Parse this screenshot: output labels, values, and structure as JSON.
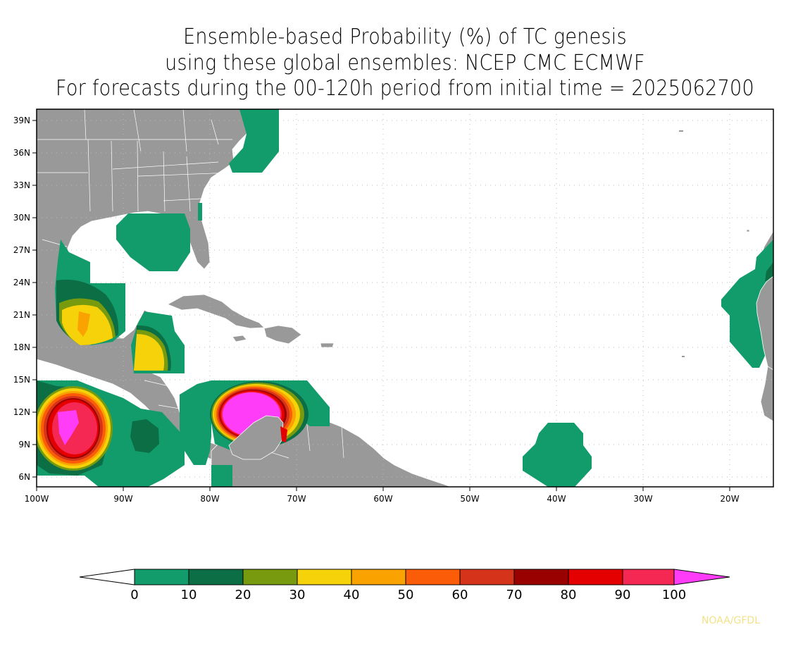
{
  "title": {
    "line1": "Ensemble-based Probability (%) of TC genesis",
    "line2": "using these global ensembles:   NCEP CMC ECMWF",
    "line3": "For forecasts during the 00-120h period from initial time = 2025062700"
  },
  "axes": {
    "lat_labels": [
      "39N",
      "36N",
      "33N",
      "30N",
      "27N",
      "24N",
      "21N",
      "18N",
      "15N",
      "12N",
      "9N",
      "6N"
    ],
    "lon_labels": [
      "100W",
      "90W",
      "80W",
      "70W",
      "60W",
      "50W",
      "40W",
      "30W",
      "20W"
    ]
  },
  "colorbar": {
    "ticks": [
      "0",
      "10",
      "20",
      "30",
      "40",
      "50",
      "60",
      "70",
      "80",
      "90",
      "100"
    ],
    "colors": [
      "#129c6c",
      "#0b6e45",
      "#779a0e",
      "#f5d20a",
      "#f9a200",
      "#fb5c07",
      "#d6341a",
      "#990000",
      "#e40000",
      "#f42852",
      "#ff3df8"
    ]
  },
  "colors": {
    "land": "#999999",
    "ocean": "#ffffff",
    "grid": "#bbbbbb"
  },
  "credit": "NOAA/GFDL"
}
